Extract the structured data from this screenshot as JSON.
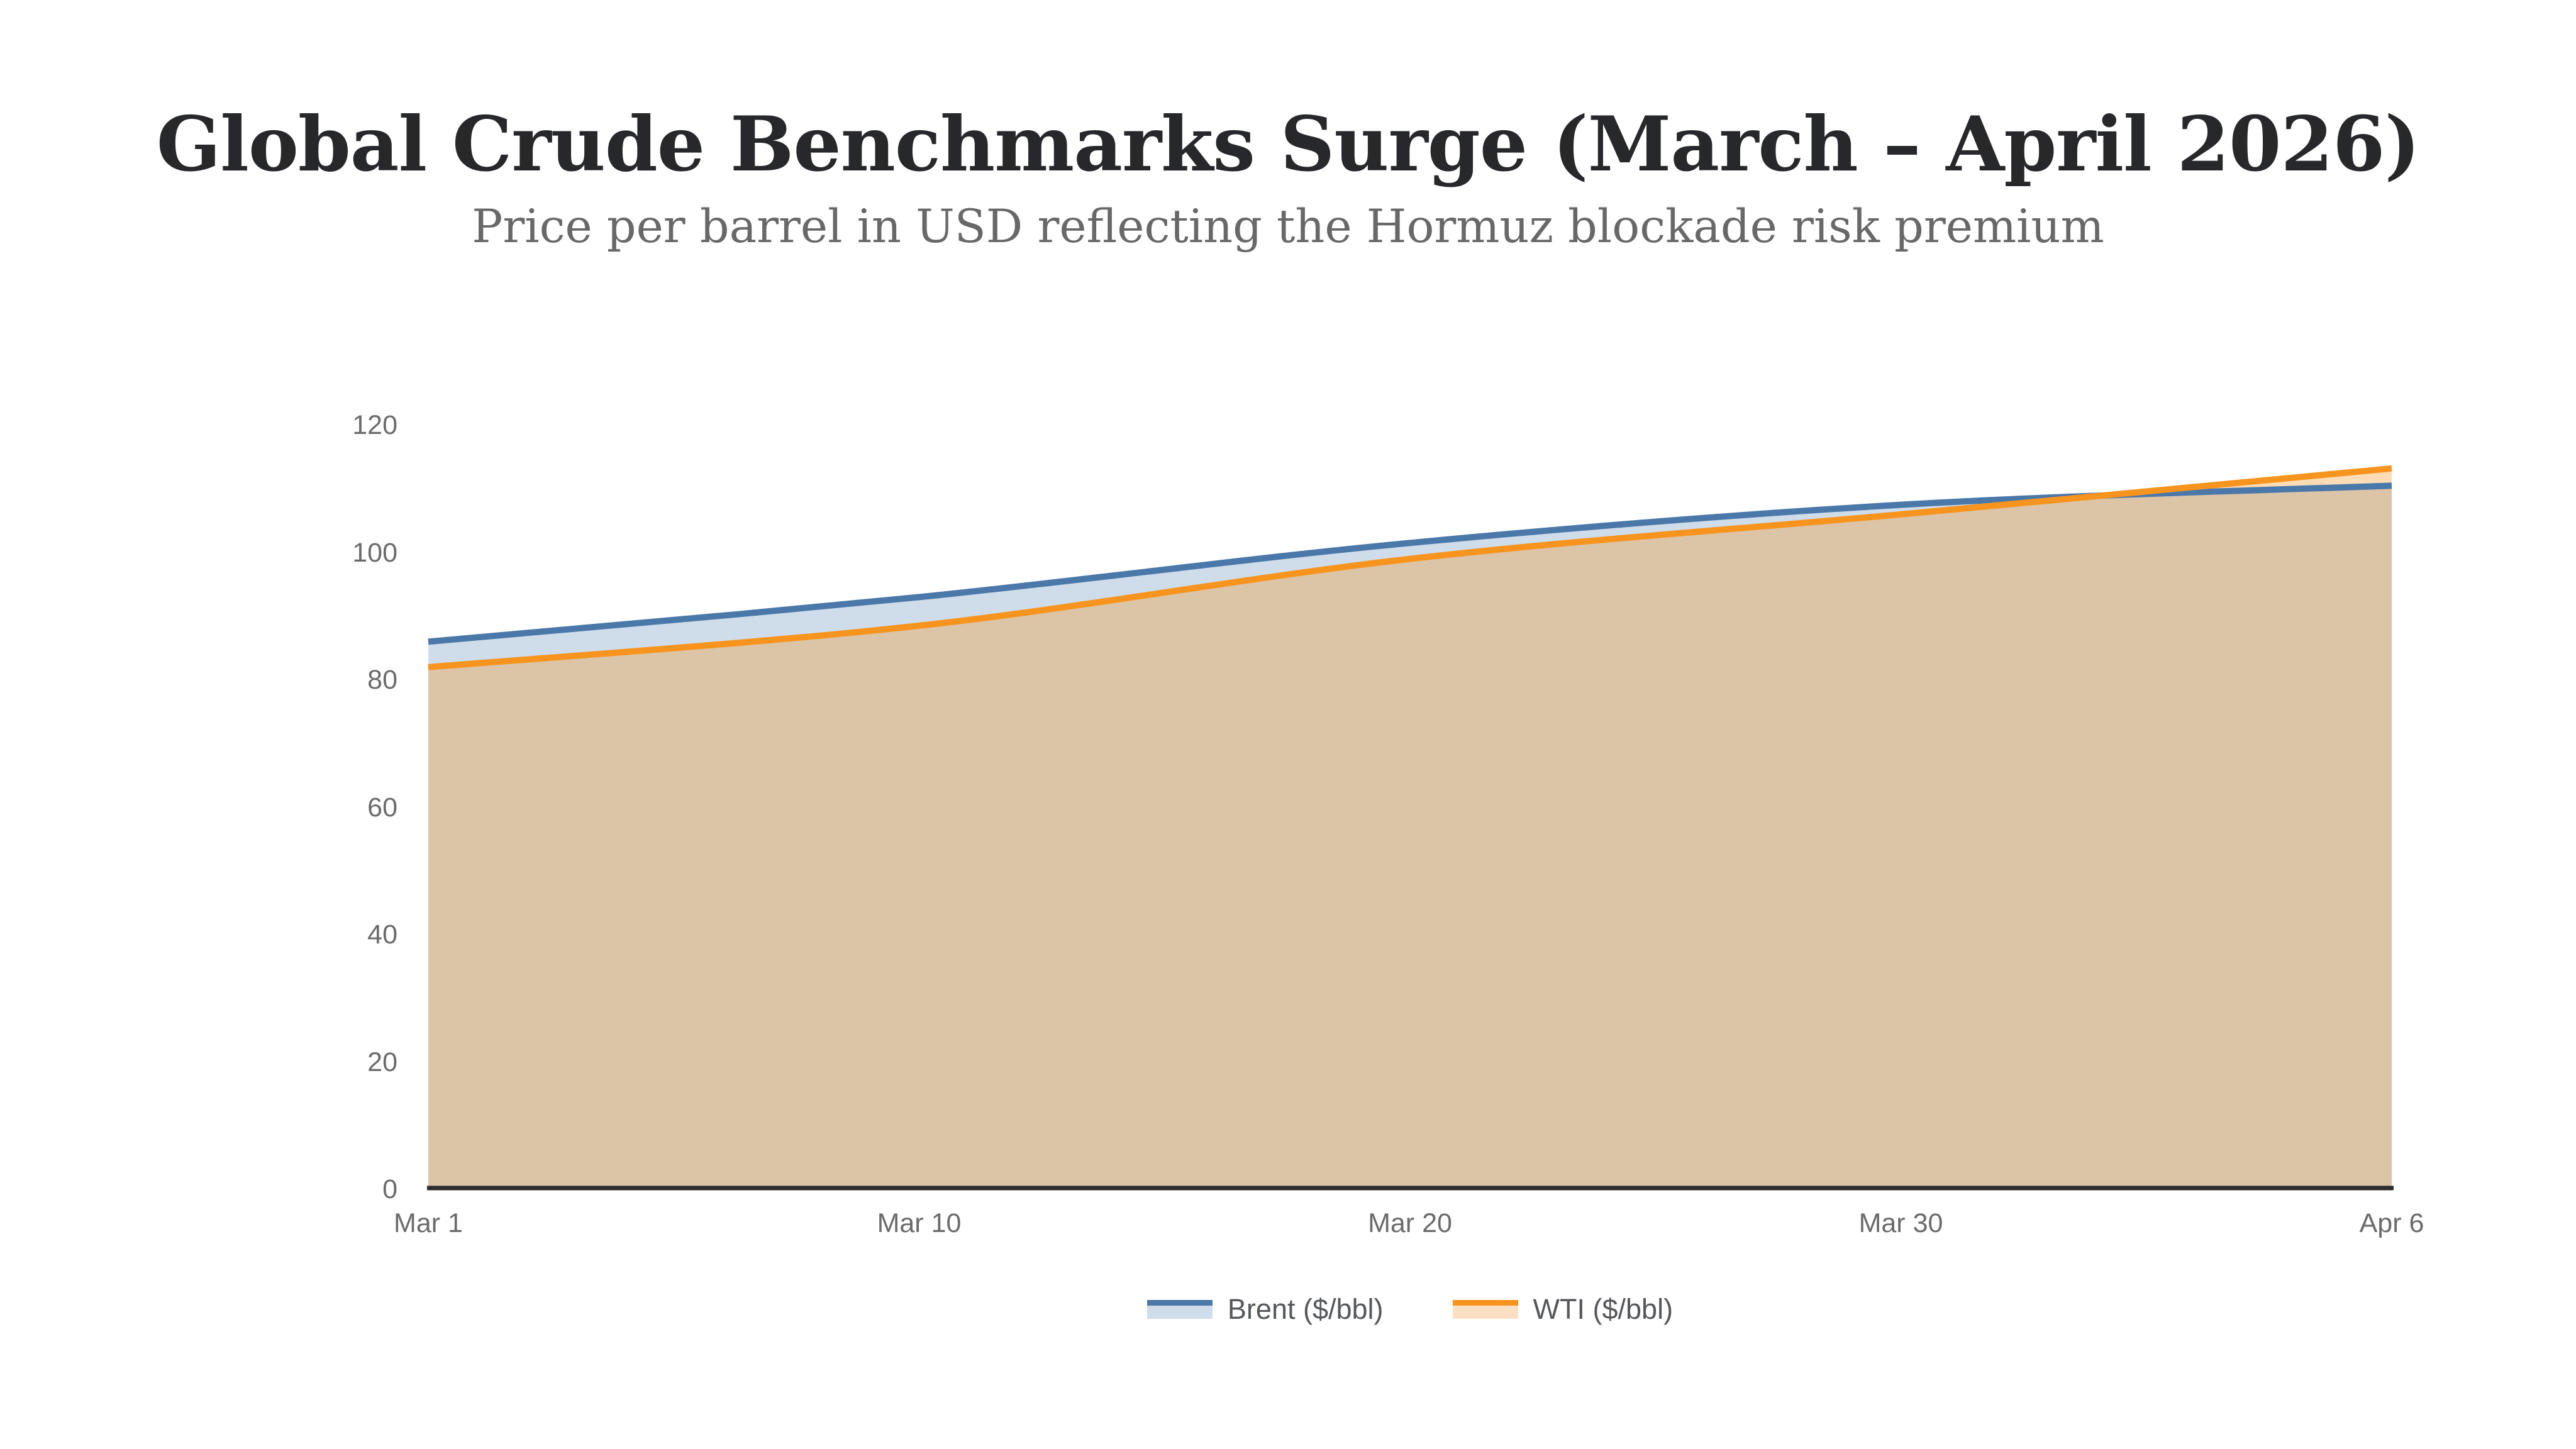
{
  "title": "Global Crude Benchmarks Surge (March – April 2026)",
  "subtitle": "Price per barrel in USD reflecting the Hormuz blockade risk premium",
  "chart_data": {
    "type": "area",
    "categories": [
      "Mar 1",
      "Mar 10",
      "Mar 20",
      "Mar 30",
      "Apr 6"
    ],
    "series": [
      {
        "name": "Brent ($/bbl)",
        "values": [
          86,
          93,
          101.5,
          107.5,
          110.5
        ],
        "line_color": "#4A78A8",
        "area_fill": "#CFDCEA",
        "legend_fill": "#CFDCEA"
      },
      {
        "name": "WTI ($/bbl)",
        "values": [
          82,
          88.5,
          99,
          106,
          113.2
        ],
        "line_color": "#F7941E",
        "area_fill": "rgba(247,148,30,0.33)",
        "legend_fill": "#FBDFC2"
      }
    ],
    "title": "Global Crude Benchmarks Surge (March – April 2026)",
    "xlabel": "",
    "ylabel": "",
    "ylim": [
      0,
      120
    ],
    "y_ticks": [
      0,
      20,
      40,
      60,
      80,
      100,
      120
    ],
    "grid": false,
    "legend_position": "bottom",
    "axis_line_color": "#2E2E2E",
    "tick_label_color": "#6B6B6B"
  }
}
